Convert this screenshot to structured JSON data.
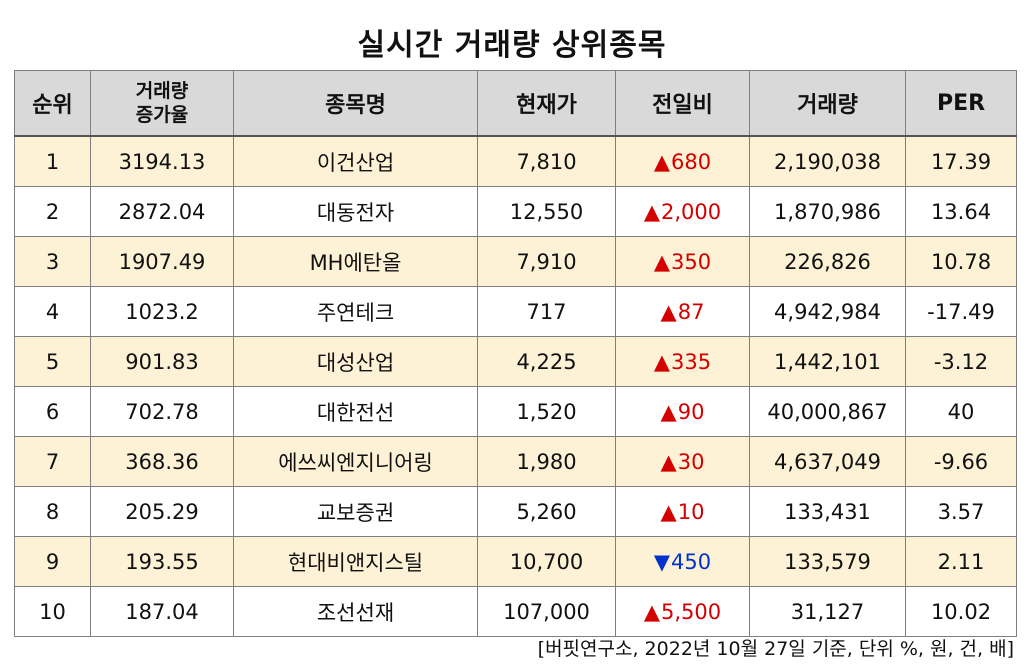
{
  "title": "실시간 거래량 상위종목",
  "headers": {
    "rank": "순위",
    "increase_line1": "거래량",
    "increase_line2": "증가율",
    "name": "종목명",
    "price": "현재가",
    "change": "전일비",
    "volume": "거래량",
    "per": "PER"
  },
  "rows": [
    {
      "rank": "1",
      "increase": "3194.13",
      "name": "이건산업",
      "price": "7,810",
      "dir": "up",
      "arrow": "▲",
      "change": "680",
      "volume": "2,190,038",
      "per": "17.39"
    },
    {
      "rank": "2",
      "increase": "2872.04",
      "name": "대동전자",
      "price": "12,550",
      "dir": "up",
      "arrow": "▲",
      "change": "2,000",
      "volume": "1,870,986",
      "per": "13.64"
    },
    {
      "rank": "3",
      "increase": "1907.49",
      "name": "MH에탄올",
      "price": "7,910",
      "dir": "up",
      "arrow": "▲",
      "change": "350",
      "volume": "226,826",
      "per": "10.78"
    },
    {
      "rank": "4",
      "increase": "1023.2",
      "name": "주연테크",
      "price": "717",
      "dir": "up",
      "arrow": "▲",
      "change": "87",
      "volume": "4,942,984",
      "per": "-17.49"
    },
    {
      "rank": "5",
      "increase": "901.83",
      "name": "대성산업",
      "price": "4,225",
      "dir": "up",
      "arrow": "▲",
      "change": "335",
      "volume": "1,442,101",
      "per": "-3.12"
    },
    {
      "rank": "6",
      "increase": "702.78",
      "name": "대한전선",
      "price": "1,520",
      "dir": "up",
      "arrow": "▲",
      "change": "90",
      "volume": "40,000,867",
      "per": "40"
    },
    {
      "rank": "7",
      "increase": "368.36",
      "name": "에쓰씨엔지니어링",
      "price": "1,980",
      "dir": "up",
      "arrow": "▲",
      "change": "30",
      "volume": "4,637,049",
      "per": "-9.66"
    },
    {
      "rank": "8",
      "increase": "205.29",
      "name": "교보증권",
      "price": "5,260",
      "dir": "up",
      "arrow": "▲",
      "change": "10",
      "volume": "133,431",
      "per": "3.57"
    },
    {
      "rank": "9",
      "increase": "193.55",
      "name": "현대비앤지스틸",
      "price": "10,700",
      "dir": "down",
      "arrow": "▼",
      "change": "450",
      "volume": "133,579",
      "per": "2.11"
    },
    {
      "rank": "10",
      "increase": "187.04",
      "name": "조선선재",
      "price": "107,000",
      "dir": "up",
      "arrow": "▲",
      "change": "5,500",
      "volume": "31,127",
      "per": "10.02"
    }
  ],
  "colors": {
    "up": "#d40000",
    "down": "#0033cc",
    "header_bg": "#d9d9d9",
    "stripe": "#fdf2d6"
  },
  "footer": "[버핏연구소, 2022년 10월 27일 기준, 단위 %, 원, 건, 배]"
}
